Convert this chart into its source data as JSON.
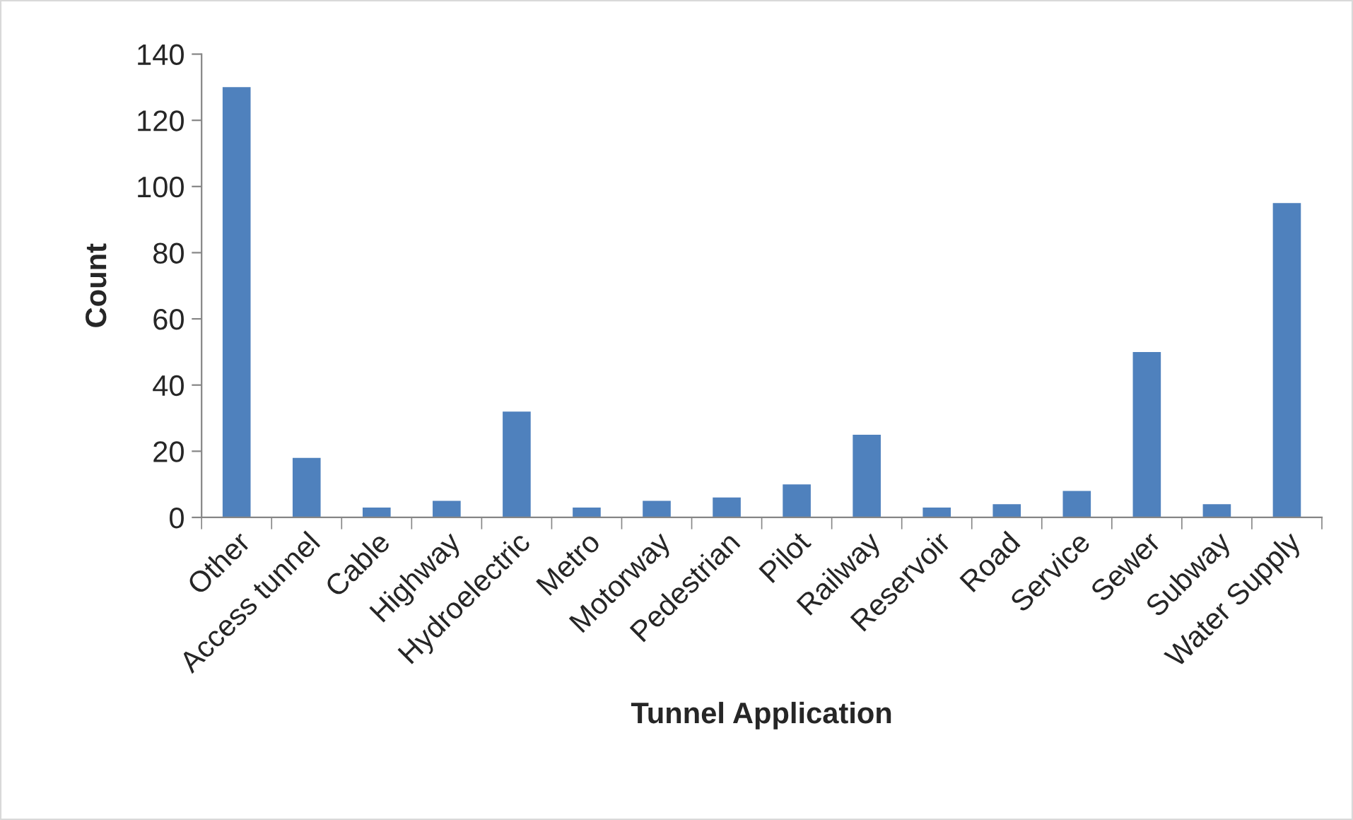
{
  "chart_data": {
    "type": "bar",
    "xlabel": "Tunnel Application",
    "ylabel": "Count",
    "categories": [
      "Other",
      "Access tunnel",
      "Cable",
      "Highway",
      "Hydroelectric",
      "Metro",
      "Motorway",
      "Pedestrian",
      "Pilot",
      "Railway",
      "Reservoir",
      "Road",
      "Service",
      "Sewer",
      "Subway",
      "Water Supply"
    ],
    "values": [
      130,
      18,
      3,
      5,
      32,
      3,
      5,
      6,
      10,
      25,
      3,
      4,
      8,
      50,
      4,
      95
    ],
    "color": "#4f81bd",
    "ylim": [
      0,
      140
    ],
    "yticks": [
      0,
      20,
      40,
      60,
      80,
      100,
      120,
      140
    ],
    "grid": false,
    "legend": false
  }
}
